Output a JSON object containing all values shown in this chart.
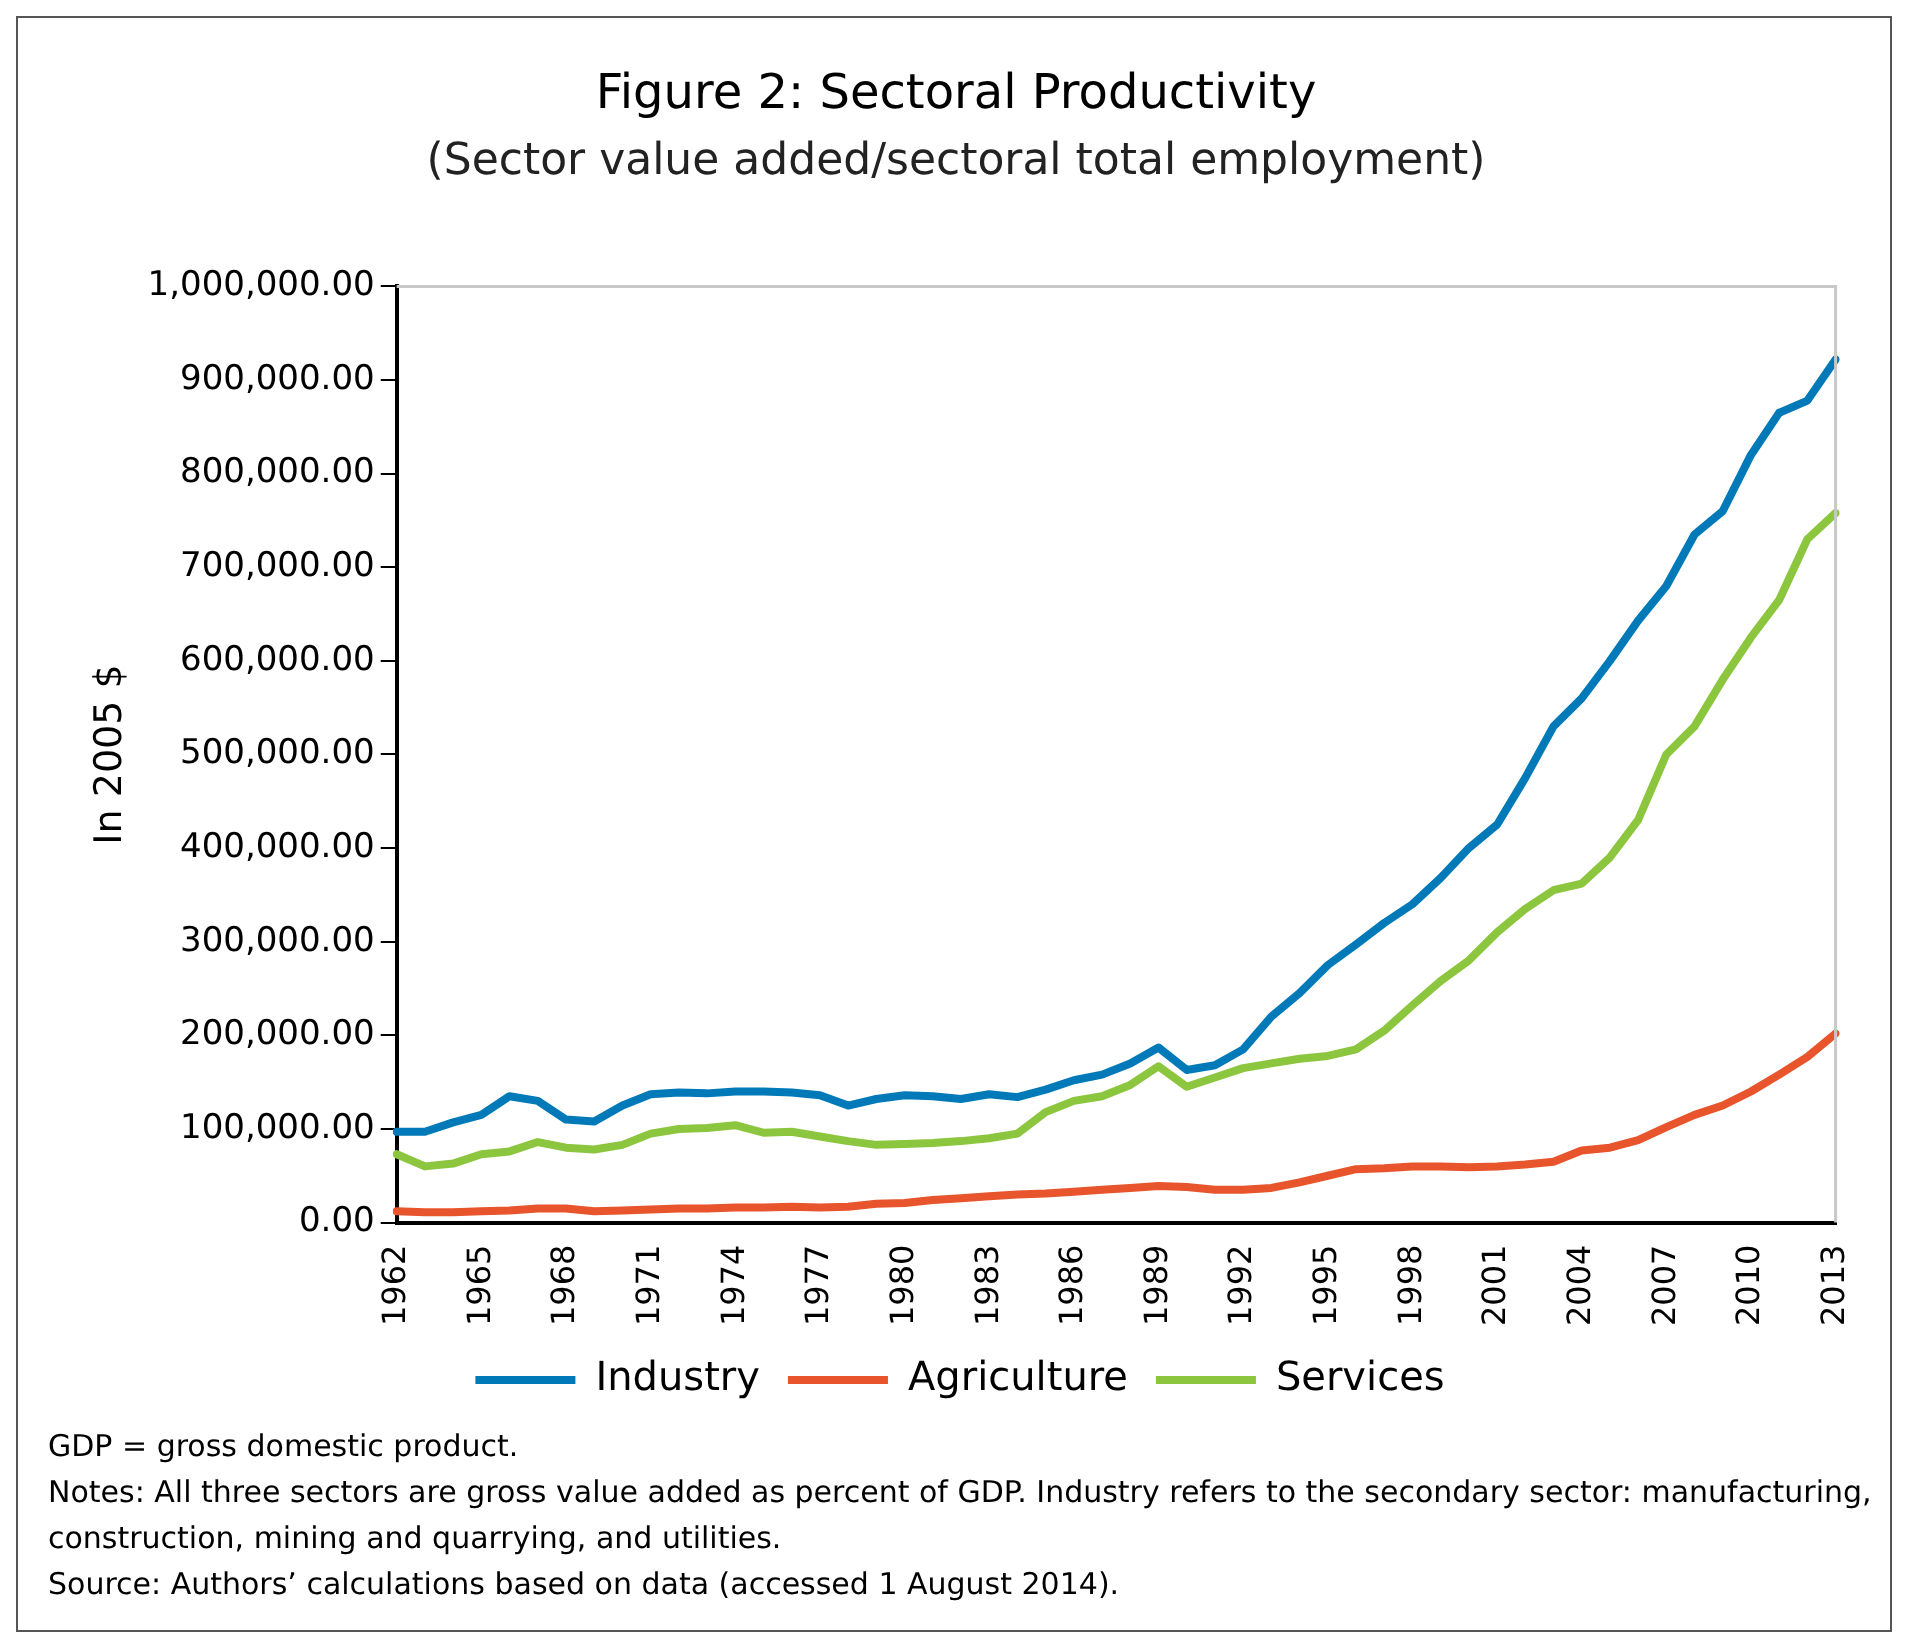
{
  "chart_data": {
    "type": "line",
    "title": "Figure 2: Sectoral Productivity",
    "subtitle": "(Sector value added/sectoral total employment)",
    "ylabel": "In 2005 $",
    "categories": [
      "1962",
      null,
      null,
      "1965",
      null,
      null,
      "1968",
      null,
      null,
      "1971",
      null,
      null,
      "1974",
      null,
      null,
      "1977",
      null,
      null,
      "1980",
      null,
      null,
      "1983",
      null,
      null,
      "1986",
      null,
      null,
      "1989",
      null,
      null,
      "1992",
      null,
      null,
      "1995",
      null,
      null,
      "1998",
      null,
      null,
      "2001",
      null,
      null,
      "2004",
      null,
      null,
      "2007",
      null,
      null,
      "2010",
      null,
      null,
      "2013"
    ],
    "series": [
      {
        "name": "Industry",
        "color": "#0079b8",
        "values": [
          97000,
          97000,
          107000,
          115000,
          135000,
          130000,
          110000,
          108000,
          125000,
          137000,
          139000,
          138000,
          140000,
          140000,
          139000,
          136000,
          125000,
          132000,
          136000,
          135000,
          132000,
          137000,
          134000,
          142000,
          152000,
          158000,
          170000,
          187000,
          163000,
          168000,
          185000,
          220000,
          245000,
          275000,
          297000,
          320000,
          340000,
          368000,
          400000,
          425000,
          475000,
          530000,
          560000,
          600000,
          643000,
          680000,
          735000,
          760000,
          820000,
          865000,
          878000,
          922000
        ]
      },
      {
        "name": "Agriculture",
        "color": "#e8542b",
        "values": [
          12000,
          11000,
          11000,
          12000,
          13000,
          15000,
          15000,
          12000,
          13000,
          14000,
          15000,
          15000,
          16000,
          16000,
          17000,
          16000,
          17000,
          20000,
          21000,
          24000,
          26000,
          28000,
          30000,
          31000,
          33000,
          35000,
          37000,
          39000,
          38000,
          35000,
          35000,
          37000,
          43000,
          50000,
          57000,
          58000,
          60000,
          60000,
          59000,
          60000,
          62000,
          65000,
          77000,
          80000,
          88000,
          102000,
          115000,
          125000,
          140000,
          158000,
          177000,
          202000
        ]
      },
      {
        "name": "Services",
        "color": "#8cc63f",
        "values": [
          73000,
          60000,
          63000,
          73000,
          76000,
          86000,
          80000,
          78000,
          83000,
          95000,
          100000,
          101000,
          104000,
          96000,
          97000,
          92000,
          87000,
          83000,
          84000,
          85000,
          87000,
          90000,
          95000,
          118000,
          130000,
          135000,
          147000,
          167000,
          145000,
          155000,
          165000,
          170000,
          175000,
          178000,
          185000,
          205000,
          232000,
          258000,
          280000,
          310000,
          335000,
          355000,
          362000,
          390000,
          430000,
          500000,
          530000,
          580000,
          625000,
          665000,
          730000,
          758000
        ]
      }
    ],
    "ylim": [
      0,
      1000000
    ],
    "yticks": [
      {
        "value": 0,
        "label": "0.00"
      },
      {
        "value": 100000,
        "label": "100,000.00"
      },
      {
        "value": 200000,
        "label": "200,000.00"
      },
      {
        "value": 300000,
        "label": "300,000.00"
      },
      {
        "value": 400000,
        "label": "400,000.00"
      },
      {
        "value": 500000,
        "label": "500,000.00"
      },
      {
        "value": 600000,
        "label": "600,000.00"
      },
      {
        "value": 700000,
        "label": "700,000.00"
      },
      {
        "value": 800000,
        "label": "800,000.00"
      },
      {
        "value": 900000,
        "label": "900,000.00"
      },
      {
        "value": 1000000,
        "label": "1,000,000.00"
      }
    ],
    "grid": false,
    "legend": "bottom",
    "marker": "none",
    "line_style": "solid",
    "annotations": [
      "GDP = gross domestic product.",
      "Notes: All three sectors are gross value added as percent of GDP. Industry refers to the secondary sector: manufacturing, construction, mining and quarrying, and utilities.",
      "Source: Authors’ calculations based on data (accessed 1 August 2014)."
    ]
  }
}
